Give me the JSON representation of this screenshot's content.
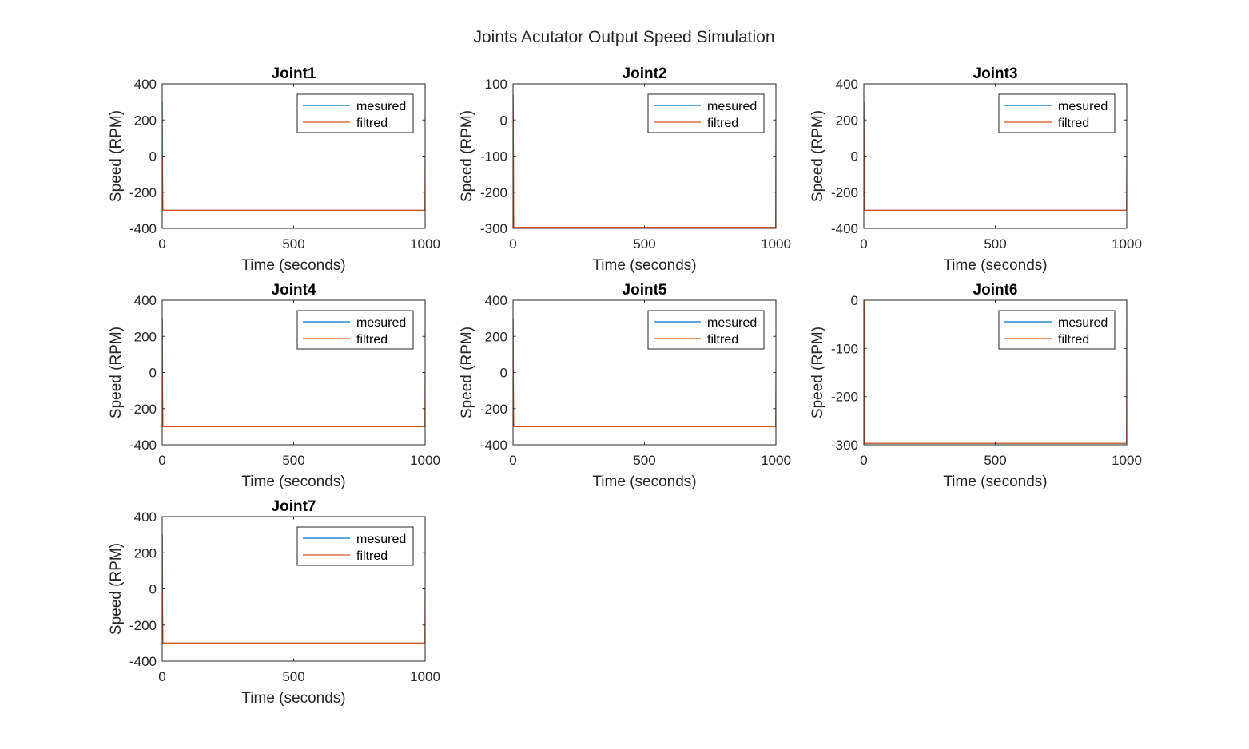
{
  "figure_title": "Joints Acutator Output Speed Simulation",
  "colors": {
    "mesured": "#0072BD",
    "filtred": "#D95319",
    "axis": "#262626",
    "background": "#ffffff"
  },
  "chart_data": [
    {
      "type": "line",
      "title": "Joint1",
      "xlabel": "Time (seconds)",
      "ylabel": "Speed (RPM)",
      "xlim": [
        0,
        1000
      ],
      "ylim": [
        -400,
        400
      ],
      "xticks": [
        0,
        500,
        1000
      ],
      "yticks": [
        -400,
        -200,
        0,
        200,
        400
      ],
      "legend": {
        "placement": "top-right",
        "entries": [
          "mesured",
          "filtred"
        ]
      },
      "series": [
        {
          "name": "mesured",
          "x": [
            0,
            0.5,
            1,
            1000
          ],
          "y": [
            0,
            300,
            -300,
            -300
          ]
        },
        {
          "name": "filtred",
          "x": [
            0,
            1,
            3,
            999,
            1000
          ],
          "y": [
            0,
            0,
            -300,
            -300,
            0
          ]
        }
      ]
    },
    {
      "type": "line",
      "title": "Joint2",
      "xlabel": "Time (seconds)",
      "ylabel": "Speed (RPM)",
      "xlim": [
        0,
        1000
      ],
      "ylim": [
        -300,
        100
      ],
      "xticks": [
        0,
        500,
        1000
      ],
      "yticks": [
        -300,
        -200,
        -100,
        0,
        100
      ],
      "legend": {
        "placement": "top-right",
        "entries": [
          "mesured",
          "filtred"
        ]
      },
      "series": [
        {
          "name": "mesured",
          "x": [
            0,
            0.5,
            1,
            1000
          ],
          "y": [
            0,
            70,
            -297,
            -297
          ]
        },
        {
          "name": "filtred",
          "x": [
            0,
            1,
            3,
            999,
            1000
          ],
          "y": [
            70,
            0,
            -297,
            -297,
            0
          ]
        }
      ]
    },
    {
      "type": "line",
      "title": "Joint3",
      "xlabel": "Time (seconds)",
      "ylabel": "Speed (RPM)",
      "xlim": [
        0,
        1000
      ],
      "ylim": [
        -400,
        400
      ],
      "xticks": [
        0,
        500,
        1000
      ],
      "yticks": [
        -400,
        -200,
        0,
        200,
        400
      ],
      "legend": {
        "placement": "top-right",
        "entries": [
          "mesured",
          "filtred"
        ]
      },
      "series": [
        {
          "name": "mesured",
          "x": [
            0,
            0.5,
            1,
            1000
          ],
          "y": [
            0,
            300,
            -300,
            -300
          ]
        },
        {
          "name": "filtred",
          "x": [
            0,
            1,
            3,
            999,
            1000
          ],
          "y": [
            300,
            0,
            -300,
            -300,
            0
          ]
        }
      ]
    },
    {
      "type": "line",
      "title": "Joint4",
      "xlabel": "Time (seconds)",
      "ylabel": "Speed (RPM)",
      "xlim": [
        0,
        1000
      ],
      "ylim": [
        -400,
        400
      ],
      "xticks": [
        0,
        500,
        1000
      ],
      "yticks": [
        -400,
        -200,
        0,
        200,
        400
      ],
      "legend": {
        "placement": "top-right",
        "entries": [
          "mesured",
          "filtred"
        ]
      },
      "series": [
        {
          "name": "mesured",
          "x": [
            0,
            0.5,
            1,
            1000
          ],
          "y": [
            0,
            300,
            -300,
            -300
          ]
        },
        {
          "name": "filtred",
          "x": [
            0,
            1,
            3,
            999,
            1000
          ],
          "y": [
            300,
            0,
            -300,
            -300,
            0
          ]
        }
      ]
    },
    {
      "type": "line",
      "title": "Joint5",
      "xlabel": "Time (seconds)",
      "ylabel": "Speed (RPM)",
      "xlim": [
        0,
        1000
      ],
      "ylim": [
        -400,
        400
      ],
      "xticks": [
        0,
        500,
        1000
      ],
      "yticks": [
        -400,
        -200,
        0,
        200,
        400
      ],
      "legend": {
        "placement": "top-right",
        "entries": [
          "mesured",
          "filtred"
        ]
      },
      "series": [
        {
          "name": "mesured",
          "x": [
            0,
            0.5,
            1,
            1000
          ],
          "y": [
            0,
            300,
            -300,
            -300
          ]
        },
        {
          "name": "filtred",
          "x": [
            0,
            1,
            3,
            999,
            1000
          ],
          "y": [
            300,
            0,
            -300,
            -300,
            0
          ]
        }
      ]
    },
    {
      "type": "line",
      "title": "Joint6",
      "xlabel": "Time (seconds)",
      "ylabel": "Speed (RPM)",
      "xlim": [
        0,
        1000
      ],
      "ylim": [
        -300,
        0
      ],
      "xticks": [
        0,
        500,
        1000
      ],
      "yticks": [
        -300,
        -200,
        -100,
        0
      ],
      "legend": {
        "placement": "top-right",
        "entries": [
          "mesured",
          "filtred"
        ]
      },
      "series": [
        {
          "name": "mesured",
          "x": [
            0,
            0.5,
            1,
            1000
          ],
          "y": [
            0,
            -5,
            -297,
            -297
          ]
        },
        {
          "name": "filtred",
          "x": [
            0,
            1,
            3,
            999,
            1000
          ],
          "y": [
            0,
            0,
            -297,
            -297,
            0
          ]
        }
      ]
    },
    {
      "type": "line",
      "title": "Joint7",
      "xlabel": "Time (seconds)",
      "ylabel": "Speed (RPM)",
      "xlim": [
        0,
        1000
      ],
      "ylim": [
        -400,
        400
      ],
      "xticks": [
        0,
        500,
        1000
      ],
      "yticks": [
        -400,
        -200,
        0,
        200,
        400
      ],
      "legend": {
        "placement": "top-right",
        "entries": [
          "mesured",
          "filtred"
        ]
      },
      "series": [
        {
          "name": "mesured",
          "x": [
            0,
            0.5,
            1,
            1000
          ],
          "y": [
            0,
            300,
            -300,
            -300
          ]
        },
        {
          "name": "filtred",
          "x": [
            0,
            1,
            3,
            999,
            1000
          ],
          "y": [
            300,
            0,
            -300,
            -300,
            0
          ]
        }
      ]
    }
  ]
}
